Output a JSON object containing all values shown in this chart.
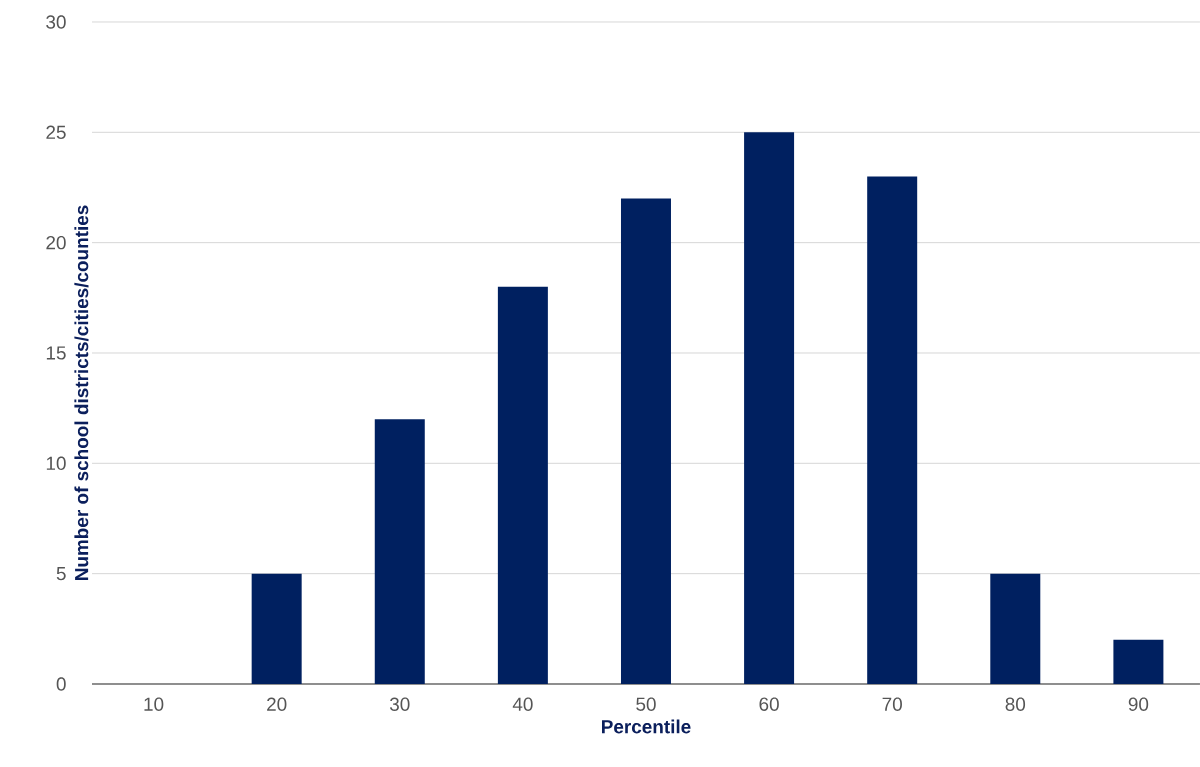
{
  "chart_data": {
    "type": "bar",
    "xlabel": "Percentile",
    "ylabel": "Number of school districts/cities/counties",
    "categories": [
      "10",
      "20",
      "30",
      "40",
      "50",
      "60",
      "70",
      "80",
      "90"
    ],
    "values": [
      0,
      5,
      12,
      18,
      22,
      25,
      23,
      5,
      2
    ],
    "color": "#002060",
    "ylim": [
      0,
      30
    ],
    "yticks": [
      0,
      5,
      10,
      15,
      20,
      25,
      30
    ],
    "grid": "y"
  }
}
